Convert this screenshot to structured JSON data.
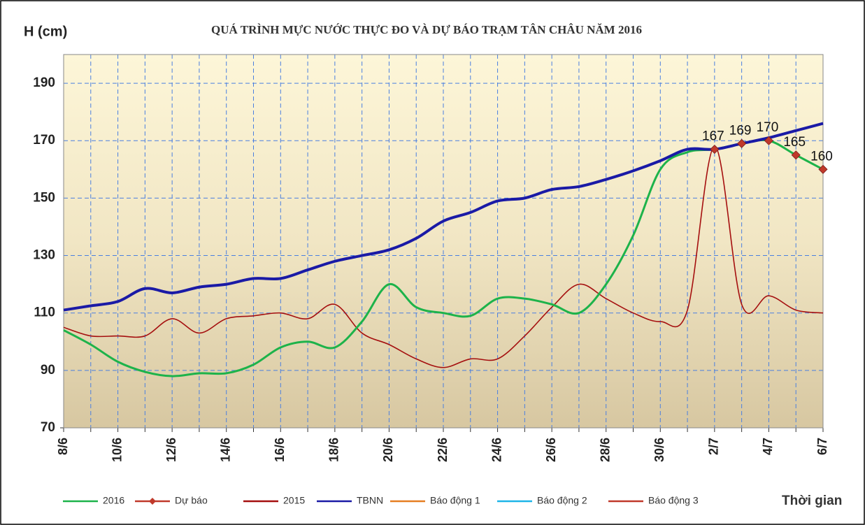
{
  "chart_data": {
    "type": "line",
    "title": "QUÁ TRÌNH MỰC NƯỚC THỰC ĐO VÀ DỰ BÁO TRẠM TÂN CHÂU NĂM 2016",
    "y_label": "H (cm)",
    "x_label": "Thời gian",
    "categories": [
      "8/6",
      null,
      "10/6",
      null,
      "12/6",
      null,
      "14/6",
      null,
      "16/6",
      null,
      "18/6",
      null,
      "20/6",
      null,
      "22/6",
      null,
      "24/6",
      null,
      "26/6",
      null,
      "28/6",
      null,
      "30/6",
      null,
      "2/7",
      null,
      "4/7",
      null,
      "6/7"
    ],
    "ylim": [
      70,
      200
    ],
    "yticks": [
      70,
      90,
      110,
      130,
      150,
      170,
      190
    ],
    "grid": true,
    "series": [
      {
        "name": "2016",
        "color": "#1db34a",
        "values": [
          104,
          99,
          93,
          89.5,
          88,
          89,
          89,
          92,
          98,
          100,
          98,
          107,
          120,
          112,
          110,
          109,
          115,
          115,
          113,
          110,
          120,
          137,
          160,
          166,
          167,
          169,
          170,
          165,
          160
        ]
      },
      {
        "name": "Dự báo",
        "color": "#c0392b",
        "marker": "diamond",
        "values": [
          null,
          null,
          null,
          null,
          null,
          null,
          null,
          null,
          null,
          null,
          null,
          null,
          null,
          null,
          null,
          null,
          null,
          null,
          null,
          null,
          null,
          null,
          null,
          null,
          167,
          169,
          170,
          165,
          160
        ]
      },
      {
        "name": "2015",
        "color": "#a50f0f",
        "values": [
          105,
          102,
          102,
          102,
          108,
          103,
          108,
          109,
          110,
          108,
          113,
          103,
          99,
          94,
          91,
          94,
          94,
          102,
          112,
          120,
          115,
          110,
          107,
          111,
          168,
          113,
          116,
          111,
          110
        ]
      },
      {
        "name": "TBNN",
        "color": "#1a1aa6",
        "values": [
          111,
          112.5,
          114,
          118.5,
          117,
          119,
          120,
          122,
          122,
          125,
          128,
          130,
          132,
          136,
          142,
          145,
          149,
          150,
          153,
          154,
          156.5,
          159.5,
          163,
          167,
          167,
          169,
          171,
          173.5,
          176
        ]
      },
      {
        "name": "Báo động 1",
        "color": "#e67e22",
        "values": [
          null,
          null,
          null,
          null,
          null,
          null,
          null,
          null,
          null,
          null,
          null,
          null,
          null,
          null,
          null,
          null,
          null,
          null,
          null,
          null,
          null,
          null,
          null,
          null,
          null,
          null,
          null,
          null,
          null
        ]
      },
      {
        "name": "Báo động 2",
        "color": "#1fb5e8",
        "values": [
          null,
          null,
          null,
          null,
          null,
          null,
          null,
          null,
          null,
          null,
          null,
          null,
          null,
          null,
          null,
          null,
          null,
          null,
          null,
          null,
          null,
          null,
          null,
          null,
          null,
          null,
          null,
          null,
          null
        ]
      },
      {
        "name": "Báo động 3",
        "color": "#c0392b",
        "values": [
          null,
          null,
          null,
          null,
          null,
          null,
          null,
          null,
          null,
          null,
          null,
          null,
          null,
          null,
          null,
          null,
          null,
          null,
          null,
          null,
          null,
          null,
          null,
          null,
          null,
          null,
          null,
          null,
          null
        ]
      }
    ]
  }
}
